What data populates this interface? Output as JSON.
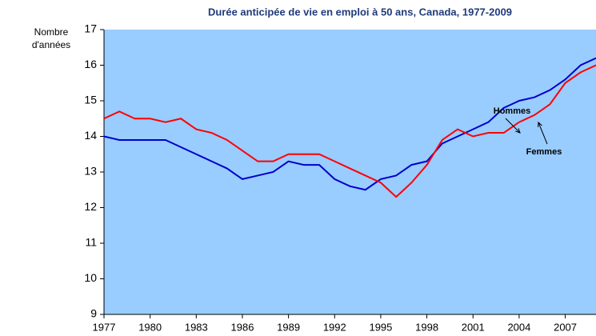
{
  "chart_data": {
    "type": "line",
    "title": "Durée anticipée de vie en emploi à 50 ans, Canada, 1977-2009",
    "ylabel": [
      "Nombre",
      "d'années"
    ],
    "x": [
      1977,
      1978,
      1979,
      1980,
      1981,
      1982,
      1983,
      1984,
      1985,
      1986,
      1987,
      1988,
      1989,
      1990,
      1991,
      1992,
      1993,
      1994,
      1995,
      1996,
      1997,
      1998,
      1999,
      2000,
      2001,
      2002,
      2003,
      2004,
      2005,
      2006,
      2007,
      2008,
      2009
    ],
    "series": [
      {
        "name": "Hommes",
        "color": "#0000cc",
        "values": [
          14.0,
          13.9,
          13.9,
          13.9,
          13.9,
          13.7,
          13.5,
          13.3,
          13.1,
          12.8,
          12.9,
          13.0,
          13.3,
          13.2,
          13.2,
          12.8,
          12.6,
          12.5,
          12.8,
          12.9,
          13.2,
          13.3,
          13.8,
          14.0,
          14.2,
          14.4,
          14.8,
          15.0,
          15.1,
          15.3,
          15.6,
          16.0,
          16.2
        ]
      },
      {
        "name": "Femmes",
        "color": "#ff0000",
        "values": [
          14.5,
          14.7,
          14.5,
          14.5,
          14.4,
          14.5,
          14.2,
          14.1,
          13.9,
          13.6,
          13.3,
          13.3,
          13.5,
          13.5,
          13.5,
          13.3,
          13.1,
          12.9,
          12.7,
          12.3,
          12.7,
          13.2,
          13.9,
          14.2,
          14.0,
          14.1,
          14.1,
          14.4,
          14.6,
          14.9,
          15.5,
          15.8,
          16.0
        ]
      }
    ],
    "xlim": [
      1977,
      2009
    ],
    "xticks": [
      1977,
      1980,
      1983,
      1986,
      1989,
      1992,
      1995,
      1998,
      2001,
      2004,
      2007
    ],
    "ylim": [
      9,
      17
    ],
    "yticks": [
      9,
      10,
      11,
      12,
      13,
      14,
      15,
      16,
      17
    ],
    "background": "#99ccff"
  }
}
